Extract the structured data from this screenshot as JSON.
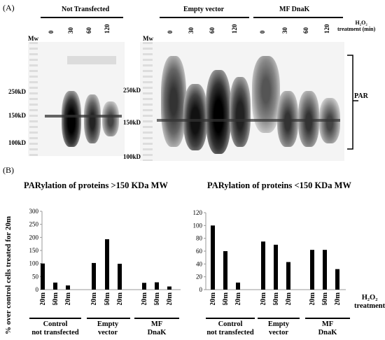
{
  "panel_a": {
    "label": "(A)",
    "mw_label": "Mw",
    "groups": [
      "Not Transfected",
      "Empty vector",
      "MF DnaK"
    ],
    "time_points": [
      "0",
      "30",
      "60",
      "120"
    ],
    "treatment_line1": "H₂O₂",
    "treatment_line2": "treatment (min)",
    "left_markers": [
      "250kD",
      "150kD",
      "100kD"
    ],
    "right_markers": [
      "250kD",
      "150kD",
      "100kD"
    ],
    "par_label": "PAR"
  },
  "panel_b": {
    "label": "(B)",
    "y_axis_label": "% over control cells treated for 20m",
    "x_annotation_line1": "H₂O₂",
    "x_annotation_line2": "treatment",
    "group_labels": [
      [
        "Control",
        "not transfected"
      ],
      [
        "Empty",
        "vector"
      ],
      [
        "MF",
        "DnaK"
      ]
    ]
  },
  "chart_data": [
    {
      "type": "bar",
      "title": "PARylation of proteins >150 KDa MW",
      "categories": [
        "20m",
        "60m",
        "120m",
        "20m",
        "60m",
        "120m",
        "20m",
        "60m",
        "120m"
      ],
      "values": [
        100,
        27,
        16,
        102,
        193,
        99,
        26,
        28,
        12
      ],
      "yticks": [
        0,
        50,
        100,
        150,
        200,
        250,
        300
      ],
      "ylim": [
        0,
        300
      ]
    },
    {
      "type": "bar",
      "title": "PARylation of proteins <150 KDa MW",
      "categories": [
        "20m",
        "60m",
        "120m",
        "20m",
        "60m",
        "120m",
        "20m",
        "60m",
        "120m"
      ],
      "values": [
        100,
        60,
        11,
        75,
        70,
        43,
        62,
        62,
        32
      ],
      "yticks": [
        0,
        20,
        40,
        60,
        80,
        100,
        120
      ],
      "ylim": [
        0,
        120
      ]
    }
  ]
}
